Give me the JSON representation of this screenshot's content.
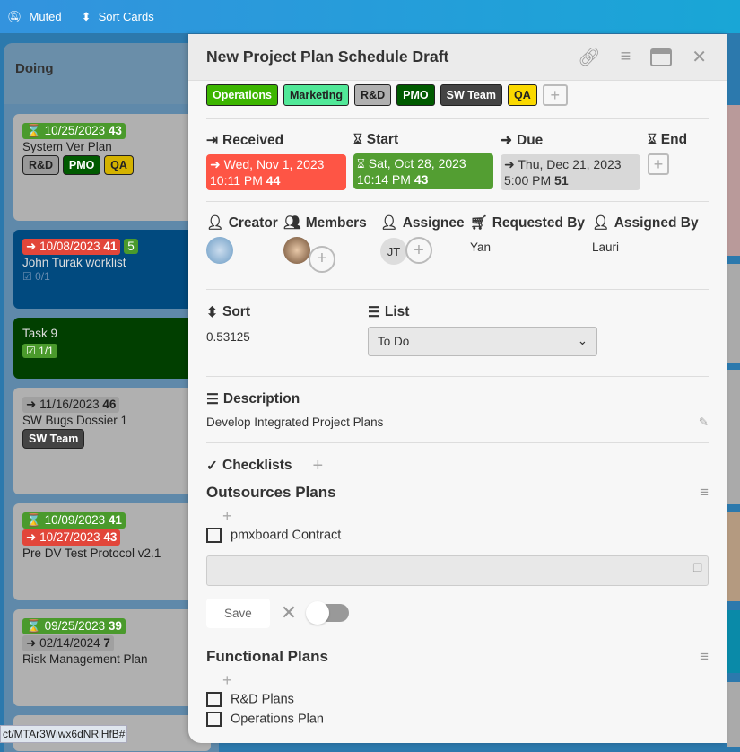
{
  "topbar": {
    "muted": "Muted",
    "sort": "Sort Cards"
  },
  "list": {
    "title": "Doing",
    "cards": [
      {
        "badges": [
          {
            "text": "10/25/2023",
            "num": "43",
            "color": "green"
          }
        ],
        "title": "System Ver Plan",
        "labels": [
          "R&D",
          "PMO",
          "QA"
        ]
      },
      {
        "badges": [
          {
            "text": "10/08/2023",
            "num": "41",
            "color": "red"
          }
        ],
        "count": "5",
        "title": "John Turak worklist",
        "checklist": "0/1"
      },
      {
        "title": "Task 9",
        "checklist": "1/1"
      },
      {
        "badges": [
          {
            "text": "11/16/2023",
            "num": "46",
            "color": "gray"
          }
        ],
        "title": "SW Bugs Dossier 1",
        "labels": [
          "SW Team"
        ]
      },
      {
        "badges": [
          {
            "text": "10/09/2023",
            "num": "41",
            "color": "green"
          },
          {
            "text": "10/27/2023",
            "num": "43",
            "color": "red"
          }
        ],
        "title": "Pre DV Test Protocol v2.1"
      },
      {
        "badges": [
          {
            "text": "09/25/2023",
            "num": "39",
            "color": "green"
          },
          {
            "text": "02/14/2024",
            "num": "7",
            "color": "gray"
          }
        ],
        "title": "Risk Management Plan"
      }
    ]
  },
  "status_url": "ct/MTAr3Wiwx6dNRiHfB#",
  "modal": {
    "title": "New Project Plan Schedule Draft",
    "tags": [
      {
        "name": "Operations",
        "bg": "#3cb500",
        "fg": "#fff"
      },
      {
        "name": "Marketing",
        "bg": "#51e898",
        "fg": "#222"
      },
      {
        "name": "R&D",
        "bg": "#b0b0b0",
        "fg": "#222"
      },
      {
        "name": "PMO",
        "bg": "#005a00",
        "fg": "#fff"
      },
      {
        "name": "SW Team",
        "bg": "#444",
        "fg": "#fff"
      },
      {
        "name": "QA",
        "bg": "#fad900",
        "fg": "#222"
      }
    ],
    "dates": {
      "received": {
        "label": "Received",
        "date": "Wed, Nov 1, 2023",
        "time": "10:11 PM",
        "num": "44"
      },
      "start": {
        "label": "Start",
        "date": "Sat, Oct 28, 2023",
        "time": "10:14 PM",
        "num": "43"
      },
      "due": {
        "label": "Due",
        "date": "Thu, Dec 21, 2023",
        "time": "5:00 PM",
        "num": "51"
      },
      "end": {
        "label": "End"
      }
    },
    "people": {
      "creator": "Creator",
      "members": "Members",
      "assignee": "Assignee",
      "assignee_initials": "JT",
      "requested_by": "Requested By",
      "requested_value": "Yan",
      "assigned_by": "Assigned By",
      "assigned_value": "Lauri"
    },
    "sort": {
      "label": "Sort",
      "value": "0.53125"
    },
    "list_field": {
      "label": "List",
      "value": "To Do"
    },
    "description": {
      "label": "Description",
      "value": "Develop Integrated Project Plans"
    },
    "checklists": {
      "label": "Checklists",
      "lists": [
        {
          "title": "Outsources Plans",
          "items": [
            "pmxboard Contract"
          ]
        },
        {
          "title": "Functional Plans",
          "items": [
            "R&D Plans",
            "Operations Plan"
          ]
        }
      ],
      "save": "Save"
    }
  }
}
